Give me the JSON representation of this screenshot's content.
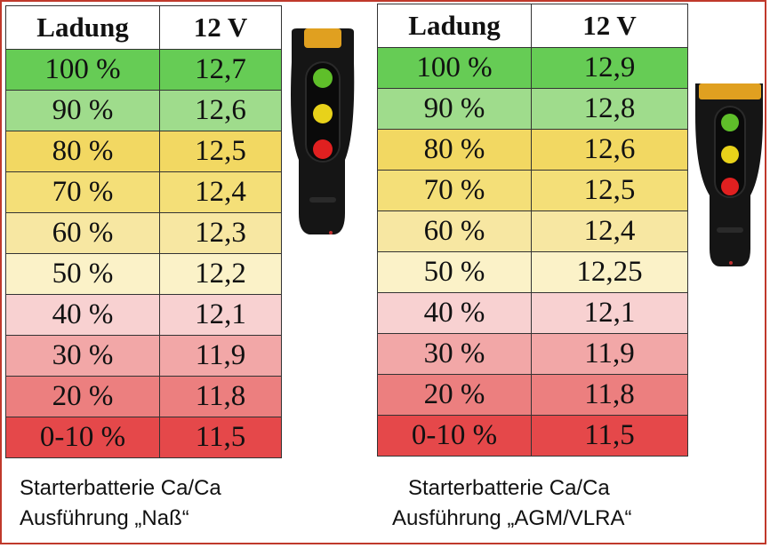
{
  "tables": [
    {
      "headers": [
        "Ladung",
        "12 V"
      ],
      "rows": [
        {
          "charge": "100 %",
          "voltage": "12,7",
          "color": "#66cc55"
        },
        {
          "charge": "90 %",
          "voltage": "12,6",
          "color": "#9fdc8c"
        },
        {
          "charge": "80 %",
          "voltage": "12,5",
          "color": "#f2d862"
        },
        {
          "charge": "70 %",
          "voltage": "12,4",
          "color": "#f4df78"
        },
        {
          "charge": "60 %",
          "voltage": "12,3",
          "color": "#f7e7a2"
        },
        {
          "charge": "50 %",
          "voltage": "12,2",
          "color": "#fbf2c8"
        },
        {
          "charge": "40 %",
          "voltage": "12,1",
          "color": "#f8d1d1"
        },
        {
          "charge": "30 %",
          "voltage": "11,9",
          "color": "#f2a7a7"
        },
        {
          "charge": "20 %",
          "voltage": "11,8",
          "color": "#ec7f7f"
        },
        {
          "charge": "0-10 %",
          "voltage": "11,5",
          "color": "#e5484a"
        }
      ],
      "caption": [
        "Starterbatterie Ca/Ca",
        "Ausführung „Naß“"
      ]
    },
    {
      "headers": [
        "Ladung",
        "12 V"
      ],
      "rows": [
        {
          "charge": "100 %",
          "voltage": "12,9",
          "color": "#66cc55"
        },
        {
          "charge": "90 %",
          "voltage": "12,8",
          "color": "#9fdc8c"
        },
        {
          "charge": "80 %",
          "voltage": "12,6",
          "color": "#f2d862"
        },
        {
          "charge": "70 %",
          "voltage": "12,5",
          "color": "#f4df78"
        },
        {
          "charge": "60 %",
          "voltage": "12,4",
          "color": "#f7e7a2"
        },
        {
          "charge": "50 %",
          "voltage": "12,25",
          "color": "#fbf2c8"
        },
        {
          "charge": "40 %",
          "voltage": "12,1",
          "color": "#f8d1d1"
        },
        {
          "charge": "30 %",
          "voltage": "11,9",
          "color": "#f2a7a7"
        },
        {
          "charge": "20 %",
          "voltage": "11,8",
          "color": "#ec7f7f"
        },
        {
          "charge": "0-10 %",
          "voltage": "11,5",
          "color": "#e5484a"
        }
      ],
      "caption": [
        "Starterbatterie Ca/Ca",
        "Ausführung „AGM/VLRA“"
      ]
    }
  ],
  "tester_leds": [
    "green",
    "yellow",
    "red"
  ],
  "colors": {
    "frame": "#c0392b",
    "led_green": "#5fbf2a",
    "led_yellow": "#e8d21a",
    "led_red": "#e02020",
    "tester_body": "#151515",
    "tester_cap": "#e0a020"
  }
}
